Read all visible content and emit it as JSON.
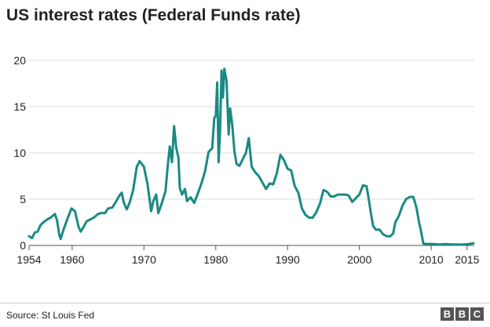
{
  "chart_data": {
    "type": "line",
    "title": "US interest rates (Federal Funds rate)",
    "xlabel": "",
    "ylabel": "",
    "xlim": [
      1954,
      2016
    ],
    "ylim": [
      0,
      20
    ],
    "x_ticks": [
      1954,
      1960,
      1970,
      1980,
      1990,
      2000,
      2010,
      2015
    ],
    "y_ticks": [
      0,
      5,
      10,
      15,
      20
    ],
    "grid": true,
    "line_color": "#1a8a84",
    "series": [
      {
        "x": [
          1954.0,
          1954.4,
          1954.8,
          1955.2,
          1955.6,
          1956.0,
          1956.5,
          1957.0,
          1957.6,
          1957.9,
          1958.2,
          1958.4,
          1958.8,
          1959.3,
          1959.9,
          1960.4,
          1960.9,
          1961.2,
          1961.6,
          1962.0,
          1962.5,
          1963.0,
          1963.6,
          1964.0,
          1964.6,
          1965.0,
          1965.6,
          1966.0,
          1966.6,
          1966.9,
          1967.2,
          1967.6,
          1968.0,
          1968.5,
          1969.0,
          1969.4,
          1970.0,
          1970.5,
          1971.0,
          1971.3,
          1971.7,
          1972.0,
          1972.5,
          1973.0,
          1973.3,
          1973.6,
          1973.9,
          1974.2,
          1974.5,
          1974.8,
          1975.0,
          1975.3,
          1975.7,
          1976.0,
          1976.5,
          1977.0,
          1977.5,
          1978.0,
          1978.5,
          1979.0,
          1979.5,
          1979.8,
          1980.0,
          1980.2,
          1980.4,
          1980.6,
          1980.8,
          1981.0,
          1981.2,
          1981.5,
          1981.8,
          1982.0,
          1982.3,
          1982.6,
          1982.9,
          1983.3,
          1983.8,
          1984.2,
          1984.6,
          1985.0,
          1985.5,
          1986.0,
          1986.5,
          1987.0,
          1987.5,
          1988.0,
          1988.5,
          1989.0,
          1989.5,
          1990.0,
          1990.5,
          1991.0,
          1991.5,
          1992.0,
          1992.5,
          1993.0,
          1993.5,
          1994.0,
          1994.5,
          1995.0,
          1995.5,
          1996.0,
          1996.5,
          1997.0,
          1997.5,
          1998.0,
          1998.5,
          1999.0,
          1999.5,
          2000.0,
          2000.5,
          2001.0,
          2001.3,
          2001.6,
          2001.9,
          2002.3,
          2002.8,
          2003.3,
          2003.8,
          2004.3,
          2004.7,
          2005.0,
          2005.5,
          2006.0,
          2006.5,
          2007.0,
          2007.5,
          2007.8,
          2008.0,
          2008.3,
          2008.6,
          2008.9,
          2009.5,
          2010.0,
          2011.0,
          2012.0,
          2013.0,
          2014.0,
          2015.0,
          2015.9
        ],
        "values": [
          1.0,
          0.8,
          1.4,
          1.5,
          2.2,
          2.5,
          2.8,
          3.0,
          3.4,
          2.7,
          1.2,
          0.7,
          1.7,
          2.8,
          4.0,
          3.7,
          2.0,
          1.5,
          2.0,
          2.6,
          2.8,
          3.0,
          3.4,
          3.5,
          3.5,
          4.0,
          4.1,
          4.6,
          5.4,
          5.7,
          4.6,
          3.9,
          4.6,
          6.0,
          8.5,
          9.1,
          8.5,
          6.6,
          3.7,
          4.8,
          5.5,
          3.5,
          4.6,
          5.9,
          8.5,
          10.7,
          9.0,
          12.9,
          10.5,
          9.5,
          6.2,
          5.5,
          6.1,
          4.8,
          5.2,
          4.6,
          5.6,
          6.7,
          8.0,
          10.1,
          10.5,
          13.8,
          14.0,
          17.6,
          9.0,
          12.5,
          18.9,
          16.0,
          19.1,
          17.8,
          12.0,
          14.8,
          13.0,
          10.1,
          8.8,
          8.6,
          9.4,
          10.0,
          11.6,
          8.5,
          7.9,
          7.5,
          6.8,
          6.1,
          6.7,
          6.6,
          7.8,
          9.8,
          9.2,
          8.3,
          8.1,
          6.4,
          5.7,
          4.0,
          3.3,
          3.0,
          3.0,
          3.6,
          4.5,
          6.0,
          5.8,
          5.3,
          5.3,
          5.5,
          5.5,
          5.5,
          5.4,
          4.7,
          5.1,
          5.5,
          6.5,
          6.4,
          5.0,
          3.5,
          2.1,
          1.7,
          1.7,
          1.2,
          1.0,
          1.0,
          1.3,
          2.5,
          3.2,
          4.3,
          5.0,
          5.25,
          5.25,
          4.5,
          3.9,
          2.5,
          1.5,
          0.2,
          0.15,
          0.17,
          0.1,
          0.14,
          0.11,
          0.09,
          0.13,
          0.24
        ]
      }
    ]
  },
  "footer": {
    "source": "Source: St Louis Fed",
    "logo_letters": [
      "B",
      "B",
      "C"
    ]
  }
}
